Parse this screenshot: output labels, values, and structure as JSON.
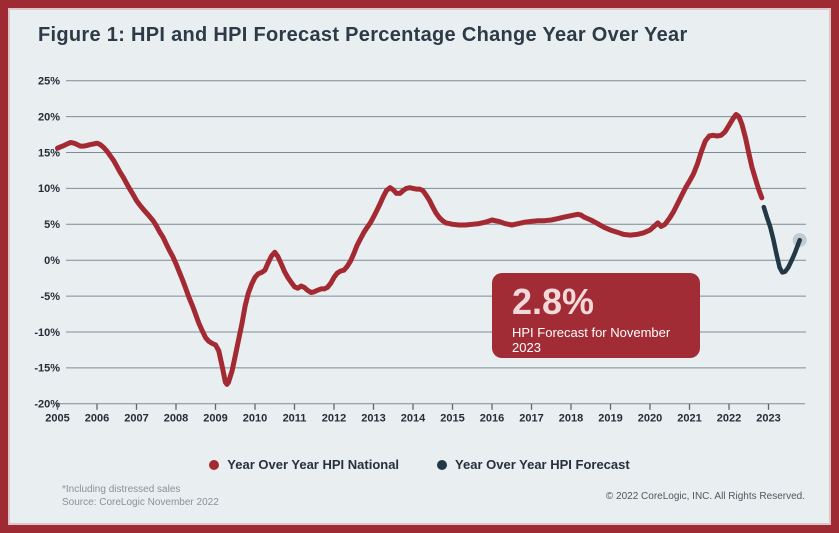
{
  "header": {
    "title": "Figure 1: HPI and HPI Forecast Percentage Change Year Over Year"
  },
  "callout": {
    "value": "2.8%",
    "caption": "HPI Forecast for November 2023"
  },
  "footer": {
    "note1": "*Including distressed sales",
    "note2": "Source: CoreLogic November 2022",
    "copyright": "© 2022 CoreLogic, INC. All Rights Reserved."
  },
  "colors": {
    "background": "#E9EEF0",
    "frame_border": "#9E2B33",
    "line_national": "#A32A33",
    "line_forecast": "#233846",
    "callout_bg": "#A22C36",
    "callout_value": "#F3D8DA",
    "gridline": "#7E8C96",
    "tick": "#5C6870",
    "axis_text": "#242E37",
    "endpoint_marker": "#C2CBD1"
  },
  "chart_data": {
    "type": "line",
    "title": "Figure 1: HPI and HPI Forecast Percentage Change Year Over Year",
    "xlabel": "",
    "ylabel": "",
    "grid": true,
    "legend_position": "bottom",
    "ylim": [
      -20,
      25
    ],
    "xlim": [
      2005,
      2023.9
    ],
    "y_tick_labels": [
      "25%",
      "20%",
      "15%",
      "10%",
      "5%",
      "0%",
      "-5%",
      "-10%",
      "-15%",
      "-20%"
    ],
    "y_tick_values": [
      25,
      20,
      15,
      10,
      5,
      0,
      -5,
      -10,
      -15,
      -20
    ],
    "x_tick_labels": [
      "2005",
      "2006",
      "2007",
      "2008",
      "2009",
      "2010",
      "2011",
      "2012",
      "2013",
      "2014",
      "2015",
      "2016",
      "2017",
      "2018",
      "2019",
      "2020",
      "2021",
      "2022",
      "2023"
    ],
    "x_tick_values": [
      2005,
      2006,
      2007,
      2008,
      2009,
      2010,
      2011,
      2012,
      2013,
      2014,
      2015,
      2016,
      2017,
      2018,
      2019,
      2020,
      2021,
      2022,
      2023
    ],
    "annotation": {
      "value": "2.8%",
      "caption": "HPI Forecast for November 2023",
      "x": 2023.79,
      "y": 2.8
    },
    "series": [
      {
        "name": "Year Over Year HPI National",
        "color": "#A32A33",
        "points": [
          [
            2005.0,
            15.6
          ],
          [
            2005.08,
            15.8
          ],
          [
            2005.17,
            16.0
          ],
          [
            2005.25,
            16.2
          ],
          [
            2005.33,
            16.4
          ],
          [
            2005.42,
            16.3
          ],
          [
            2005.5,
            16.1
          ],
          [
            2005.58,
            15.9
          ],
          [
            2005.67,
            15.9
          ],
          [
            2005.75,
            16.0
          ],
          [
            2005.83,
            16.1
          ],
          [
            2005.92,
            16.2
          ],
          [
            2006.0,
            16.3
          ],
          [
            2006.08,
            16.1
          ],
          [
            2006.17,
            15.7
          ],
          [
            2006.25,
            15.2
          ],
          [
            2006.33,
            14.6
          ],
          [
            2006.42,
            13.9
          ],
          [
            2006.5,
            13.1
          ],
          [
            2006.58,
            12.3
          ],
          [
            2006.67,
            11.5
          ],
          [
            2006.75,
            10.7
          ],
          [
            2006.83,
            9.9
          ],
          [
            2006.92,
            9.1
          ],
          [
            2007.0,
            8.3
          ],
          [
            2007.08,
            7.7
          ],
          [
            2007.17,
            7.1
          ],
          [
            2007.25,
            6.6
          ],
          [
            2007.33,
            6.1
          ],
          [
            2007.42,
            5.5
          ],
          [
            2007.5,
            4.8
          ],
          [
            2007.58,
            4.0
          ],
          [
            2007.67,
            3.2
          ],
          [
            2007.75,
            2.3
          ],
          [
            2007.83,
            1.4
          ],
          [
            2007.92,
            0.5
          ],
          [
            2008.0,
            -0.5
          ],
          [
            2008.08,
            -1.6
          ],
          [
            2008.17,
            -2.8
          ],
          [
            2008.25,
            -4.0
          ],
          [
            2008.33,
            -5.2
          ],
          [
            2008.42,
            -6.4
          ],
          [
            2008.5,
            -7.6
          ],
          [
            2008.58,
            -8.8
          ],
          [
            2008.67,
            -9.9
          ],
          [
            2008.75,
            -10.8
          ],
          [
            2008.83,
            -11.3
          ],
          [
            2008.92,
            -11.6
          ],
          [
            2009.0,
            -11.8
          ],
          [
            2009.08,
            -12.6
          ],
          [
            2009.17,
            -14.8
          ],
          [
            2009.25,
            -17.0
          ],
          [
            2009.29,
            -17.3
          ],
          [
            2009.33,
            -17.0
          ],
          [
            2009.42,
            -15.4
          ],
          [
            2009.5,
            -13.3
          ],
          [
            2009.58,
            -11.2
          ],
          [
            2009.67,
            -8.8
          ],
          [
            2009.75,
            -6.4
          ],
          [
            2009.83,
            -4.6
          ],
          [
            2009.92,
            -3.3
          ],
          [
            2010.0,
            -2.4
          ],
          [
            2010.08,
            -1.9
          ],
          [
            2010.17,
            -1.7
          ],
          [
            2010.25,
            -1.4
          ],
          [
            2010.33,
            -0.4
          ],
          [
            2010.42,
            0.6
          ],
          [
            2010.5,
            1.1
          ],
          [
            2010.58,
            0.5
          ],
          [
            2010.67,
            -0.6
          ],
          [
            2010.75,
            -1.6
          ],
          [
            2010.83,
            -2.4
          ],
          [
            2010.92,
            -3.1
          ],
          [
            2011.0,
            -3.7
          ],
          [
            2011.08,
            -3.9
          ],
          [
            2011.17,
            -3.6
          ],
          [
            2011.25,
            -3.8
          ],
          [
            2011.33,
            -4.2
          ],
          [
            2011.42,
            -4.5
          ],
          [
            2011.5,
            -4.4
          ],
          [
            2011.58,
            -4.2
          ],
          [
            2011.67,
            -4.0
          ],
          [
            2011.75,
            -4.0
          ],
          [
            2011.83,
            -3.8
          ],
          [
            2011.92,
            -3.2
          ],
          [
            2012.0,
            -2.4
          ],
          [
            2012.08,
            -1.8
          ],
          [
            2012.17,
            -1.5
          ],
          [
            2012.25,
            -1.4
          ],
          [
            2012.33,
            -0.9
          ],
          [
            2012.42,
            -0.1
          ],
          [
            2012.5,
            0.9
          ],
          [
            2012.58,
            2.0
          ],
          [
            2012.67,
            3.0
          ],
          [
            2012.75,
            3.8
          ],
          [
            2012.83,
            4.5
          ],
          [
            2012.92,
            5.2
          ],
          [
            2013.0,
            6.0
          ],
          [
            2013.08,
            6.9
          ],
          [
            2013.17,
            7.9
          ],
          [
            2013.25,
            8.9
          ],
          [
            2013.33,
            9.7
          ],
          [
            2013.42,
            10.1
          ],
          [
            2013.5,
            9.8
          ],
          [
            2013.58,
            9.3
          ],
          [
            2013.67,
            9.3
          ],
          [
            2013.75,
            9.7
          ],
          [
            2013.83,
            10.0
          ],
          [
            2013.92,
            10.1
          ],
          [
            2014.0,
            10.0
          ],
          [
            2014.08,
            9.9
          ],
          [
            2014.17,
            9.9
          ],
          [
            2014.25,
            9.7
          ],
          [
            2014.33,
            9.1
          ],
          [
            2014.42,
            8.3
          ],
          [
            2014.5,
            7.4
          ],
          [
            2014.58,
            6.6
          ],
          [
            2014.67,
            5.9
          ],
          [
            2014.75,
            5.5
          ],
          [
            2014.83,
            5.2
          ],
          [
            2014.92,
            5.1
          ],
          [
            2015.0,
            5.0
          ],
          [
            2015.17,
            4.9
          ],
          [
            2015.33,
            4.9
          ],
          [
            2015.5,
            5.0
          ],
          [
            2015.67,
            5.1
          ],
          [
            2015.83,
            5.3
          ],
          [
            2016.0,
            5.6
          ],
          [
            2016.17,
            5.4
          ],
          [
            2016.33,
            5.1
          ],
          [
            2016.5,
            4.9
          ],
          [
            2016.67,
            5.1
          ],
          [
            2016.83,
            5.3
          ],
          [
            2017.0,
            5.4
          ],
          [
            2017.17,
            5.5
          ],
          [
            2017.33,
            5.5
          ],
          [
            2017.5,
            5.6
          ],
          [
            2017.67,
            5.8
          ],
          [
            2017.83,
            6.0
          ],
          [
            2018.0,
            6.2
          ],
          [
            2018.17,
            6.4
          ],
          [
            2018.25,
            6.3
          ],
          [
            2018.33,
            6.0
          ],
          [
            2018.5,
            5.6
          ],
          [
            2018.67,
            5.1
          ],
          [
            2018.83,
            4.6
          ],
          [
            2019.0,
            4.2
          ],
          [
            2019.17,
            3.9
          ],
          [
            2019.33,
            3.6
          ],
          [
            2019.5,
            3.5
          ],
          [
            2019.67,
            3.6
          ],
          [
            2019.83,
            3.8
          ],
          [
            2020.0,
            4.2
          ],
          [
            2020.1,
            4.7
          ],
          [
            2020.2,
            5.2
          ],
          [
            2020.28,
            4.7
          ],
          [
            2020.38,
            5.0
          ],
          [
            2020.5,
            5.9
          ],
          [
            2020.6,
            6.8
          ],
          [
            2020.7,
            7.9
          ],
          [
            2020.8,
            9.0
          ],
          [
            2020.9,
            10.1
          ],
          [
            2021.0,
            11.0
          ],
          [
            2021.1,
            12.0
          ],
          [
            2021.2,
            13.4
          ],
          [
            2021.3,
            15.1
          ],
          [
            2021.4,
            16.6
          ],
          [
            2021.5,
            17.3
          ],
          [
            2021.6,
            17.4
          ],
          [
            2021.7,
            17.3
          ],
          [
            2021.8,
            17.4
          ],
          [
            2021.9,
            17.9
          ],
          [
            2022.0,
            18.8
          ],
          [
            2022.1,
            19.7
          ],
          [
            2022.18,
            20.3
          ],
          [
            2022.25,
            20.0
          ],
          [
            2022.33,
            18.9
          ],
          [
            2022.42,
            17.0
          ],
          [
            2022.5,
            14.9
          ],
          [
            2022.58,
            13.0
          ],
          [
            2022.67,
            11.3
          ],
          [
            2022.75,
            9.9
          ],
          [
            2022.83,
            8.7
          ]
        ]
      },
      {
        "name": "Year Over Year HPI Forecast",
        "color": "#233846",
        "endpoint_marker": true,
        "points": [
          [
            2022.88,
            7.4
          ],
          [
            2022.96,
            6.0
          ],
          [
            2023.04,
            4.7
          ],
          [
            2023.12,
            3.0
          ],
          [
            2023.2,
            0.9
          ],
          [
            2023.28,
            -1.0
          ],
          [
            2023.35,
            -1.7
          ],
          [
            2023.42,
            -1.6
          ],
          [
            2023.5,
            -1.0
          ],
          [
            2023.58,
            -0.1
          ],
          [
            2023.66,
            0.9
          ],
          [
            2023.73,
            1.9
          ],
          [
            2023.79,
            2.8
          ]
        ]
      }
    ]
  }
}
